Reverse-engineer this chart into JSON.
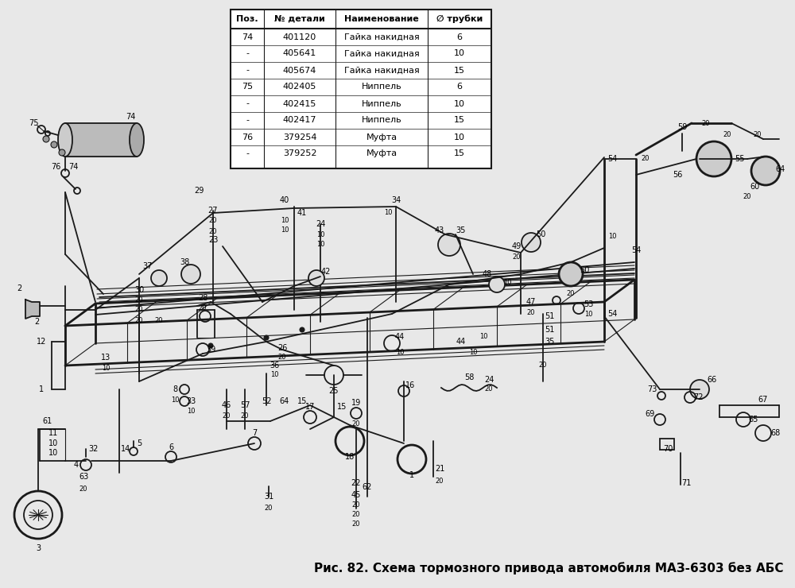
{
  "caption": "Рис. 82. Схема тормозного привода автомобиля МАЗ-6303 без АБС",
  "caption_fontsize": 11,
  "background_color": "#e8e8e8",
  "diagram_color": "#1a1a1a",
  "table_rows": [
    [
      "74",
      "401120",
      "Гайка накидная",
      "6"
    ],
    [
      "-",
      "405641",
      "Гайка накидная",
      "10"
    ],
    [
      "-",
      "405674",
      "Гайка накидная",
      "15"
    ],
    [
      "75",
      "402405",
      "Ниппель",
      "6"
    ],
    [
      "-",
      "402415",
      "Ниппель",
      "10"
    ],
    [
      "-",
      "402417",
      "Ниппель",
      "15"
    ],
    [
      "76",
      "379254",
      "Муфта",
      "10"
    ],
    [
      "-",
      "379252",
      "Муфта",
      "15"
    ]
  ],
  "fig_width": 10.0,
  "fig_height": 7.4,
  "dpi": 100
}
